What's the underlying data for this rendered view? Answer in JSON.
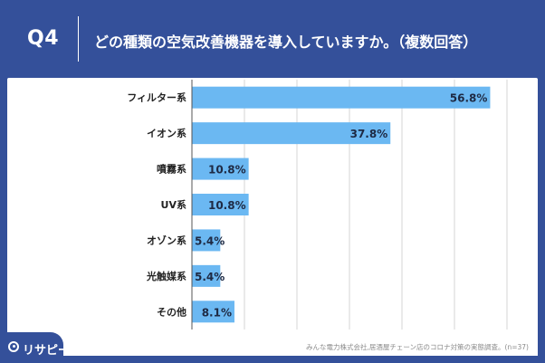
{
  "header": {
    "question_number": "Q4",
    "question_text": "どの種類の空気改善機器を導入していますか。（複数回答）"
  },
  "source_note": "みんな電力株式会社,居酒屋チェーン店のコロナ対策の実態調査。(n=37)",
  "logo_text": "リサピー",
  "colors": {
    "background": "#34509a",
    "bar": "#6bb8f2",
    "grid": "#d4d4d4"
  },
  "chart_data": {
    "type": "bar",
    "orientation": "horizontal",
    "categories": [
      "フィルター系",
      "イオン系",
      "噴霧系",
      "UV系",
      "オゾン系",
      "光触媒系",
      "その他"
    ],
    "values": [
      56.8,
      37.8,
      10.8,
      10.8,
      5.4,
      5.4,
      8.1
    ],
    "value_labels": [
      "56.8%",
      "37.8%",
      "10.8%",
      "10.8%",
      "5.4%",
      "5.4%",
      "8.1%"
    ],
    "xlim": [
      0,
      60
    ],
    "grid": true
  }
}
